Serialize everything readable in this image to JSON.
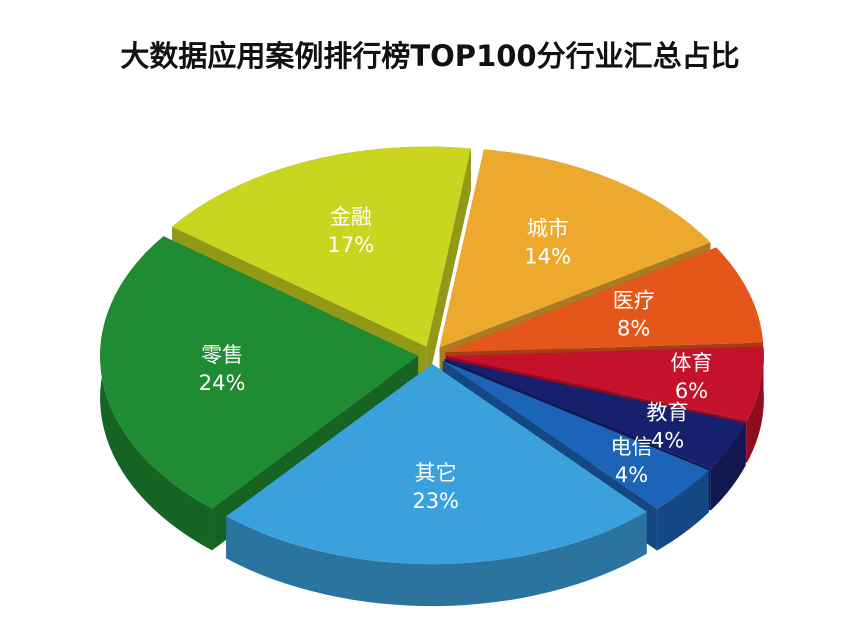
{
  "chart_data": {
    "type": "pie",
    "title": "大数据应用案例排行榜TOP100分行业汇总占比",
    "categories": [
      "城市",
      "医疗",
      "体育",
      "教育",
      "电信",
      "其它",
      "零售",
      "金融"
    ],
    "values": [
      14,
      8,
      6,
      4,
      4,
      23,
      24,
      17
    ],
    "value_labels": [
      "14%",
      "8%",
      "6%",
      "4%",
      "4%",
      "23%",
      "24%",
      "17%"
    ],
    "colors": [
      "#eda92e",
      "#e5561b",
      "#c5122c",
      "#17206e",
      "#1b64b8",
      "#3aa1dd",
      "#1f8b32",
      "#c9d51f"
    ]
  }
}
